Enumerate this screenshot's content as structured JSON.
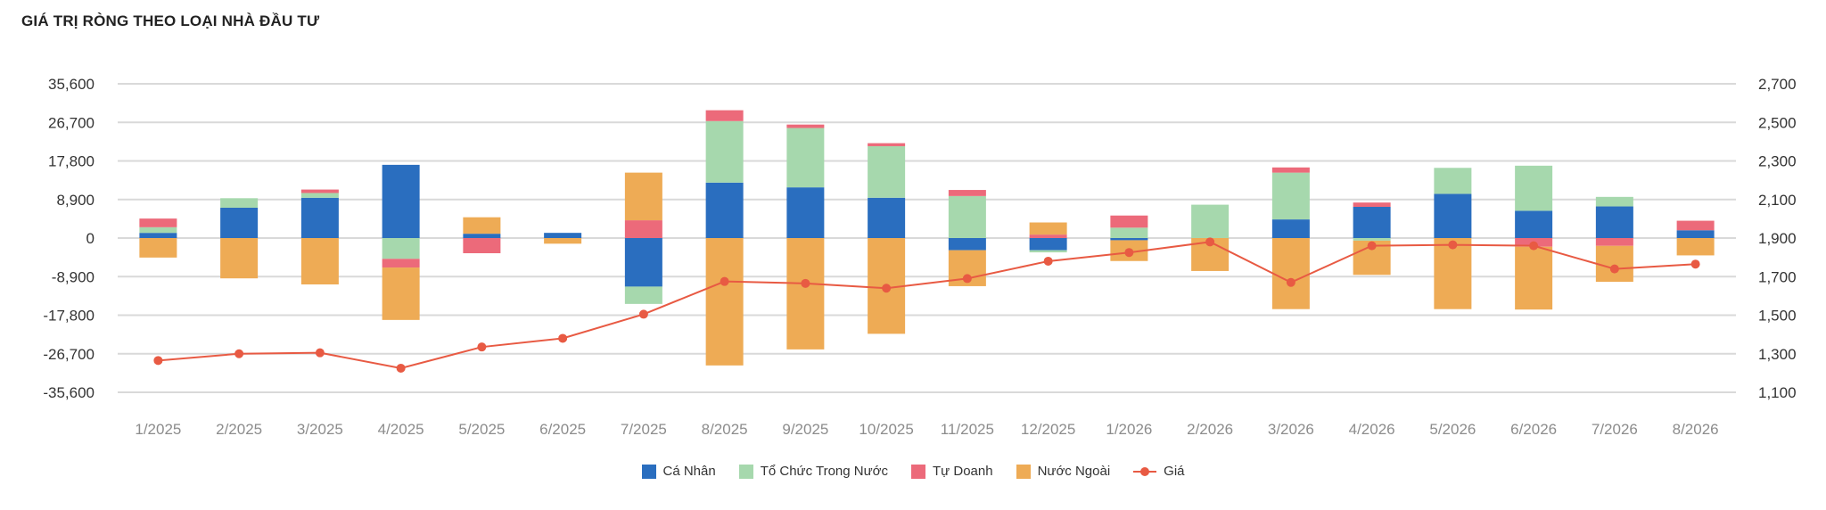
{
  "chart_data": {
    "type": "bar",
    "title": "GIÁ TRỊ RÒNG THEO LOẠI NHÀ ĐẦU TƯ",
    "stacked": true,
    "categories": [
      "1/2025",
      "2/2025",
      "3/2025",
      "4/2025",
      "5/2025",
      "6/2025",
      "7/2025",
      "8/2025",
      "9/2025",
      "10/2025",
      "11/2025",
      "12/2025",
      "1/2026",
      "2/2026",
      "3/2026",
      "4/2026",
      "5/2026",
      "6/2026",
      "7/2026",
      "8/2026"
    ],
    "left_axis": {
      "ylim": [
        -35600,
        35600
      ],
      "ticks": [
        35600,
        26700,
        17800,
        8900,
        0,
        -8900,
        -17800,
        -26700,
        -35600
      ],
      "tick_labels": [
        "35,600",
        "26,700",
        "17,800",
        "8,900",
        "0",
        "-8,900",
        "-17,800",
        "-26,700",
        "-35,600"
      ]
    },
    "right_axis": {
      "ylim": [
        1100,
        2700
      ],
      "ticks": [
        2700,
        2500,
        2300,
        2100,
        1900,
        1700,
        1500,
        1300,
        1100
      ],
      "tick_labels": [
        "2,700",
        "2,500",
        "2,300",
        "2,100",
        "1,900",
        "1,700",
        "1,500",
        "1,300",
        "1,100"
      ]
    },
    "grid": true,
    "legend_position": "bottom-center",
    "series": [
      {
        "name": "Cá Nhân",
        "type": "bar",
        "color": "#2a6ebf",
        "values": [
          1200,
          7000,
          9300,
          16900,
          1000,
          1200,
          -11200,
          12800,
          11700,
          9300,
          -2800,
          -2800,
          -500,
          0,
          4300,
          7200,
          10200,
          6300,
          7300,
          1800
        ]
      },
      {
        "name": "Tổ Chức Trong Nước",
        "type": "bar",
        "color": "#a6d8ad",
        "values": [
          1300,
          2200,
          1100,
          -4800,
          0,
          0,
          -4000,
          14200,
          13700,
          11900,
          9700,
          -500,
          2400,
          7700,
          10800,
          -600,
          6000,
          10400,
          2200,
          0
        ]
      },
      {
        "name": "Tự Doanh",
        "type": "bar",
        "color": "#ec6a7a",
        "values": [
          2000,
          0,
          800,
          -2000,
          -3500,
          0,
          4100,
          2500,
          800,
          700,
          1400,
          800,
          2800,
          0,
          1200,
          1000,
          0,
          -2000,
          -1800,
          2200
        ]
      },
      {
        "name": "Nước Ngoài",
        "type": "bar",
        "color": "#eeab55",
        "values": [
          -4500,
          -9300,
          -10700,
          -12100,
          3800,
          -1300,
          11000,
          -29400,
          -25700,
          -22100,
          -8300,
          2800,
          -4800,
          -7600,
          -16400,
          -7900,
          -16400,
          -14500,
          -8300,
          -4000
        ]
      },
      {
        "name": "Giá",
        "type": "line",
        "axis": "right",
        "color": "#e85a43",
        "values": [
          1265,
          1300,
          1305,
          1225,
          1335,
          1380,
          1505,
          1675,
          1665,
          1640,
          1690,
          1780,
          1825,
          1880,
          1670,
          1860,
          1865,
          1860,
          1740,
          1765
        ]
      }
    ]
  }
}
